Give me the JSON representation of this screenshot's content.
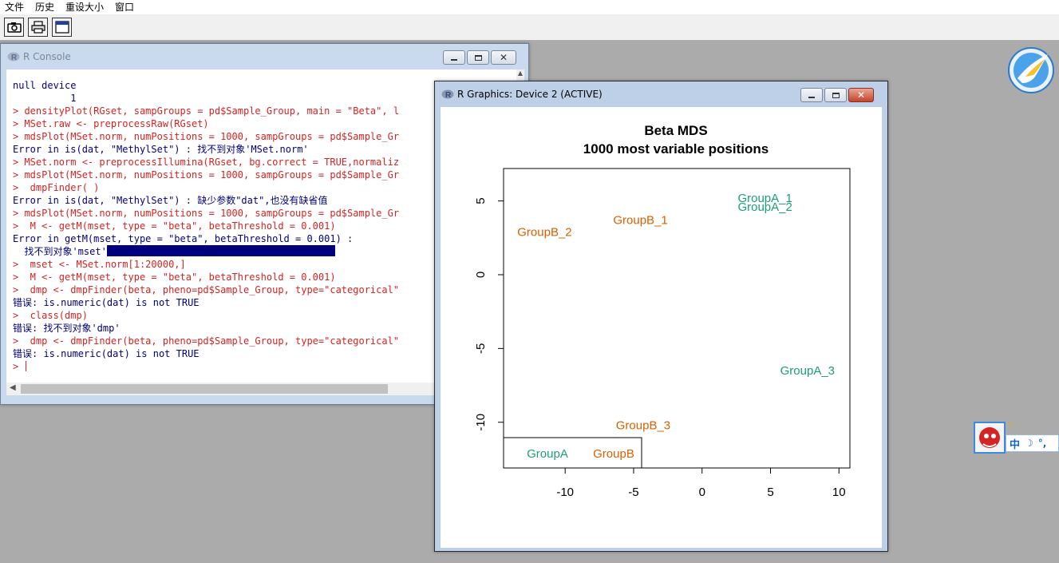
{
  "menubar": {
    "items": [
      "文件",
      "历史",
      "重设大小",
      "窗口"
    ]
  },
  "toolbar": {
    "buttons": [
      "camera-icon",
      "printer-icon",
      "window-icon"
    ]
  },
  "console": {
    "title": "R Console",
    "lines": [
      {
        "type": "out",
        "text": "null device"
      },
      {
        "type": "out",
        "text": "          1"
      },
      {
        "type": "cmd",
        "text": "> densityPlot(RGset, sampGroups = pd$Sample_Group, main = \"Beta\", l"
      },
      {
        "type": "cmd",
        "text": "> MSet.raw <- preprocessRaw(RGset)"
      },
      {
        "type": "cmd",
        "text": "> mdsPlot(MSet.norm, numPositions = 1000, sampGroups = pd$Sample_Gr"
      },
      {
        "type": "out",
        "text": "Error in is(dat, \"MethylSet\") : 找不到对象'MSet.norm'"
      },
      {
        "type": "cmd",
        "text": "> MSet.norm <- preprocessIllumina(RGset, bg.correct = TRUE,normaliz"
      },
      {
        "type": "cmd",
        "text": "> mdsPlot(MSet.norm, numPositions = 1000, sampGroups = pd$Sample_Gr"
      },
      {
        "type": "cmd",
        "text": ">  dmpFinder( )"
      },
      {
        "type": "out",
        "text": "Error in is(dat, \"MethylSet\") : 缺少参数\"dat\",也没有缺省值"
      },
      {
        "type": "cmd",
        "text": "> mdsPlot(MSet.norm, numPositions = 1000, sampGroups = pd$Sample_Gr"
      },
      {
        "type": "cmd",
        "text": ">  M <- getM(mset, type = \"beta\", betaThreshold = 0.001)"
      },
      {
        "type": "out",
        "text": "Error in getM(mset, type = \"beta\", betaThreshold = 0.001) :"
      },
      {
        "type": "out",
        "text": "  找不到对象'mset'",
        "selection": true
      },
      {
        "type": "cmd",
        "text": ">  mset <- MSet.norm[1:20000,]"
      },
      {
        "type": "cmd",
        "text": ">  M <- getM(mset, type = \"beta\", betaThreshold = 0.001)"
      },
      {
        "type": "cmd",
        "text": ">  dmp <- dmpFinder(beta, pheno=pd$Sample_Group, type=\"categorical\""
      },
      {
        "type": "out",
        "text": "错误: is.numeric(dat) is not TRUE"
      },
      {
        "type": "cmd",
        "text": ">  class(dmp)"
      },
      {
        "type": "out",
        "text": "错误: 找不到对象'dmp'"
      },
      {
        "type": "cmd",
        "text": ">  dmp <- dmpFinder(beta, pheno=pd$Sample_Group, type=\"categorical\""
      },
      {
        "type": "out",
        "text": "错误: is.numeric(dat) is not TRUE"
      },
      {
        "type": "cmd",
        "text": "> ",
        "cursor": true
      }
    ]
  },
  "graphics": {
    "title": "R Graphics: Device 2 (ACTIVE)"
  },
  "chart_data": {
    "type": "scatter",
    "title": "Beta MDS",
    "subtitle": "1000 most variable positions",
    "xlabel": "",
    "ylabel": "",
    "xlim": [
      -14.5,
      10.8
    ],
    "ylim": [
      -13.1,
      7.2
    ],
    "xticks": [
      -10,
      -5,
      0,
      5,
      10
    ],
    "yticks": [
      -10,
      -5,
      0,
      5
    ],
    "grid": false,
    "series": [
      {
        "name": "GroupA",
        "color": "#1b9e77",
        "points": [
          {
            "label": "GroupA_1",
            "x": 4.6,
            "y": 5.2
          },
          {
            "label": "GroupA_2",
            "x": 4.6,
            "y": 4.6
          },
          {
            "label": "GroupA_3",
            "x": 7.7,
            "y": -6.5
          }
        ]
      },
      {
        "name": "GroupB",
        "color": "#d95f02",
        "points": [
          {
            "label": "GroupB_1",
            "x": -4.5,
            "y": 3.7
          },
          {
            "label": "GroupB_2",
            "x": -11.5,
            "y": 2.9
          },
          {
            "label": "GroupB_3",
            "x": -4.3,
            "y": -10.2
          }
        ]
      }
    ],
    "legend": {
      "position": "bottom-left",
      "entries": [
        "GroupA",
        "GroupB"
      ]
    }
  },
  "desktop": {
    "ime": {
      "lang": "中",
      "mode_icon": "moon-icon",
      "punct": "°,"
    }
  }
}
